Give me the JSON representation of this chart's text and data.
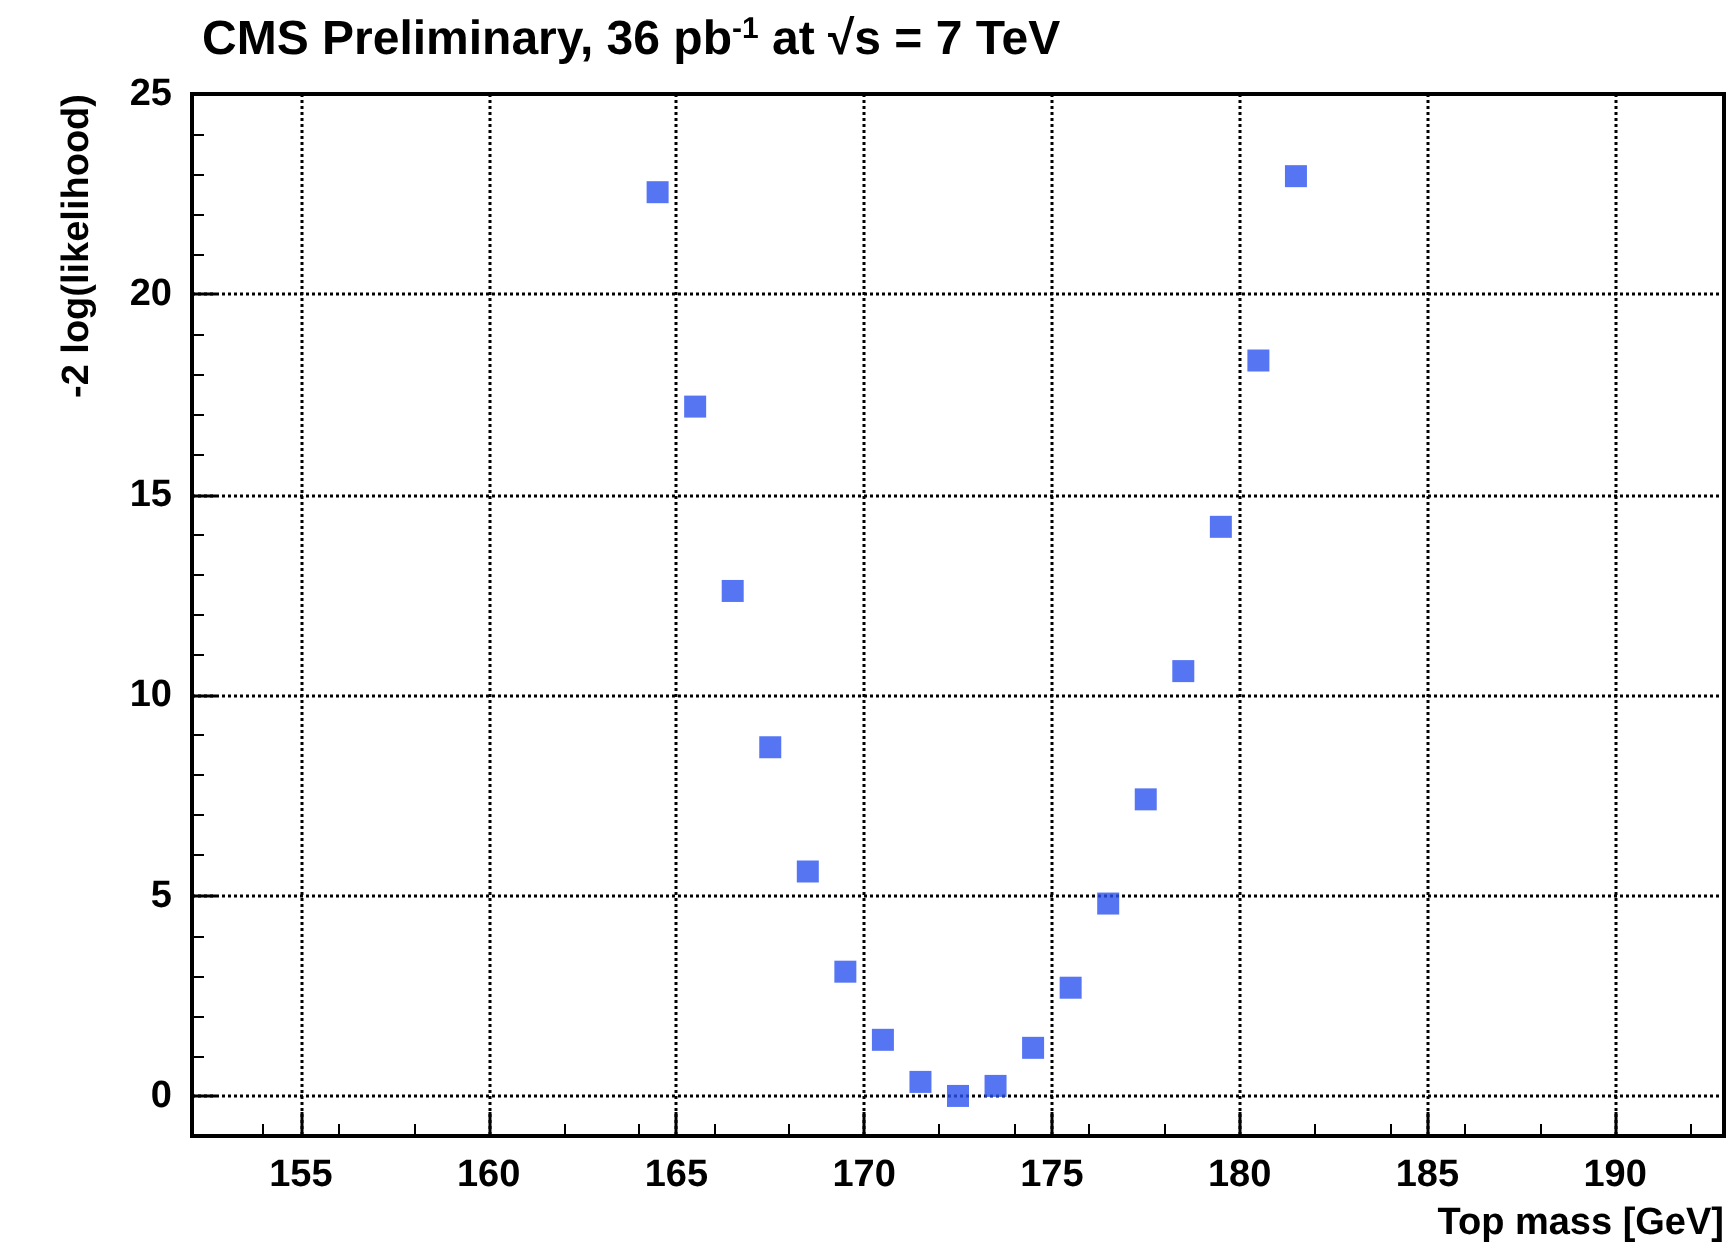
{
  "chart_data": {
    "type": "scatter",
    "title": "CMS Preliminary, 36 pb$^{-1}$ at √s = 7 TeV",
    "xlabel": "Top mass [GeV]",
    "ylabel": "-2 log(likelihood)",
    "x": [
      164.5,
      165.5,
      166.5,
      167.5,
      168.5,
      169.5,
      170.5,
      171.5,
      172.5,
      173.5,
      174.5,
      175.5,
      176.5,
      177.5,
      178.5,
      179.5,
      180.5,
      181.5
    ],
    "series": [
      {
        "color": "#2b52f0",
        "values": [
          22.55,
          17.2,
          12.6,
          8.7,
          5.6,
          3.1,
          1.4,
          0.35,
          0,
          0.25,
          1.2,
          2.7,
          4.8,
          7.4,
          10.6,
          14.2,
          18.35,
          22.95
        ]
      }
    ],
    "xlim": [
      152.1,
      192.9
    ],
    "xticks": [
      155,
      160,
      165,
      170,
      175,
      180,
      185,
      190
    ],
    "ylim": [
      -1,
      25
    ],
    "yticks": [
      0,
      5,
      10,
      15,
      20,
      25
    ],
    "grid": true,
    "marker": "square"
  }
}
